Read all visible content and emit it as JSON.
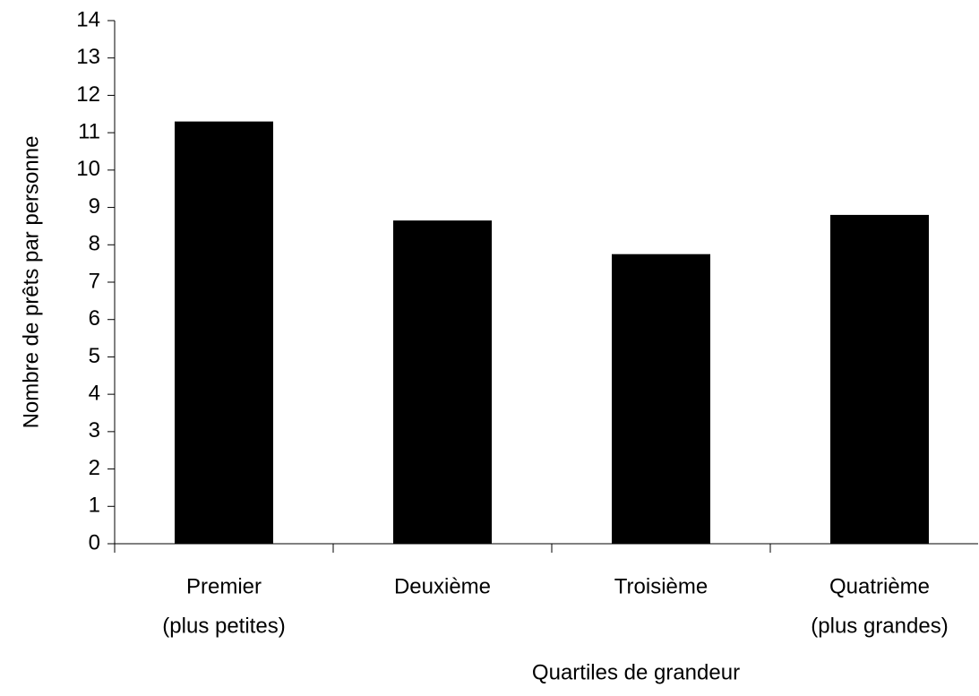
{
  "chart_data": {
    "type": "bar",
    "categories": [
      [
        "Premier",
        "(plus petites)"
      ],
      [
        "Deuxième"
      ],
      [
        "Troisième"
      ],
      [
        "Quatrième",
        "(plus grandes)"
      ]
    ],
    "values": [
      11.3,
      8.65,
      7.75,
      8.8
    ],
    "color": "#000000",
    "ylim": [
      0,
      14
    ],
    "yticks": [
      0,
      1,
      2,
      3,
      4,
      5,
      6,
      7,
      8,
      9,
      10,
      11,
      12,
      13,
      14
    ],
    "y_label": "Nombre de prêts par personne",
    "x_label": "Quartiles de grandeur",
    "grid": false
  }
}
